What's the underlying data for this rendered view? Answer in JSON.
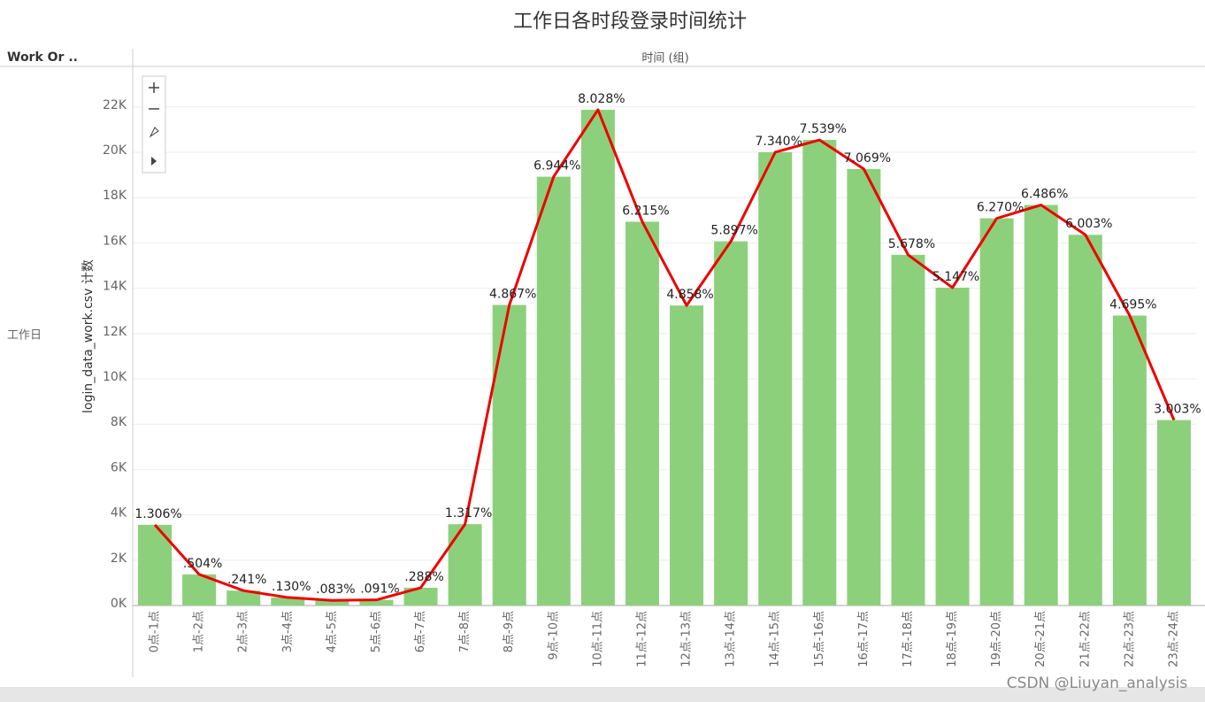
{
  "chart_data": {
    "type": "bar",
    "title": "工作日各时段登录时间统计",
    "row_header": "Work Or ..",
    "row_label": "工作日",
    "x_label": "时间 (组)",
    "y_label": "login_data_work.csv 计数",
    "watermark": "CSDN @Liuyan_analysis",
    "categories": [
      "0点-1点",
      "1点-2点",
      "2点-3点",
      "3点-4点",
      "4点-5点",
      "5点-6点",
      "6点-7点",
      "7点-8点",
      "8点-9点",
      "9点-10点",
      "10点-11点",
      "11点-12点",
      "12点-13点",
      "13点-14点",
      "14点-15点",
      "15点-16点",
      "16点-17点",
      "17点-18点",
      "18点-19点",
      "19点-20点",
      "20点-21点",
      "21点-22点",
      "22点-23点",
      "23点-24点"
    ],
    "series": [
      {
        "type": "bar",
        "color": "#8dd07c",
        "values": [
          3559,
          1373,
          657,
          354,
          226,
          248,
          785,
          3589,
          13263,
          18922,
          21876,
          16936,
          13238,
          16069,
          20002,
          20544,
          19263,
          15473,
          14026,
          17086,
          17674,
          16358,
          12794,
          8183
        ]
      },
      {
        "type": "line",
        "color": "#ee0000",
        "axis": "y2",
        "values": [
          1.306,
          0.504,
          0.241,
          0.13,
          0.083,
          0.091,
          0.288,
          1.317,
          4.867,
          6.944,
          8.028,
          6.215,
          4.858,
          5.897,
          7.34,
          7.539,
          7.069,
          5.678,
          5.147,
          6.27,
          6.486,
          6.003,
          4.695,
          3.003
        ],
        "value_labels": [
          "1.306%",
          ".504%",
          ".241%",
          ".130%",
          ".083%",
          ".091%",
          ".288%",
          "1.317%",
          "4.867%",
          "6.944%",
          "8.028%",
          "6.215%",
          "4.858%",
          "5.897%",
          "7.340%",
          "7.539%",
          "7.069%",
          "5.678%",
          "5.147%",
          "6.270%",
          "6.486%",
          "6.003%",
          "4.695%",
          "3.003%"
        ]
      }
    ],
    "ylim": [
      0,
      23750
    ],
    "yticks": [
      {
        "value": 0,
        "label": "0K"
      },
      {
        "value": 2000,
        "label": "2K"
      },
      {
        "value": 4000,
        "label": "4K"
      },
      {
        "value": 6000,
        "label": "6K"
      },
      {
        "value": 8000,
        "label": "8K"
      },
      {
        "value": 10000,
        "label": "10K"
      },
      {
        "value": 12000,
        "label": "12K"
      },
      {
        "value": 14000,
        "label": "14K"
      },
      {
        "value": 16000,
        "label": "16K"
      },
      {
        "value": 18000,
        "label": "18K"
      },
      {
        "value": 20000,
        "label": "20K"
      },
      {
        "value": 22000,
        "label": "22K"
      }
    ],
    "y2lim": [
      0,
      8.716
    ],
    "grid": true
  }
}
